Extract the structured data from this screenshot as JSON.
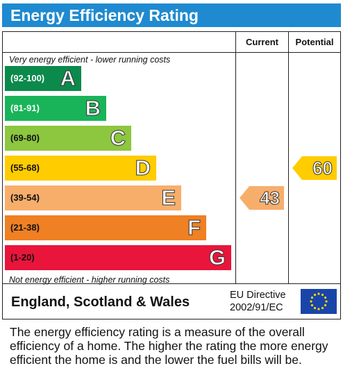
{
  "title": "Energy Efficiency Rating",
  "columns": {
    "current": "Current",
    "potential": "Potential"
  },
  "top_note": "Very energy efficient - lower running costs",
  "bottom_note": "Not energy efficient - higher running costs",
  "footer": {
    "country": "England, Scotland & Wales",
    "directive_line1": "EU Directive",
    "directive_line2": "2002/91/EC",
    "flag_icon": "eu-flag-icon"
  },
  "description": "The energy efficiency rating is a measure of the overall efficiency of a home. The higher the rating the more energy efficient the home is and the lower the fuel bills will be.",
  "chart_data": {
    "type": "bar",
    "title": "Energy Efficiency Rating",
    "bands": [
      {
        "letter": "A",
        "range": "(92-100)",
        "color": "#0b8a4b"
      },
      {
        "letter": "B",
        "range": "(81-91)",
        "color": "#19b459"
      },
      {
        "letter": "C",
        "range": "(69-80)",
        "color": "#8dc63f"
      },
      {
        "letter": "D",
        "range": "(55-68)",
        "color": "#ffcc00"
      },
      {
        "letter": "E",
        "range": "(39-54)",
        "color": "#f7ae6b"
      },
      {
        "letter": "F",
        "range": "(21-38)",
        "color": "#ef8023"
      },
      {
        "letter": "G",
        "range": "(1-20)",
        "color": "#e9153b"
      }
    ],
    "current": {
      "value": 43,
      "band": "E",
      "color": "#f7ae6b"
    },
    "potential": {
      "value": 60,
      "band": "D",
      "color": "#ffcc00"
    }
  }
}
